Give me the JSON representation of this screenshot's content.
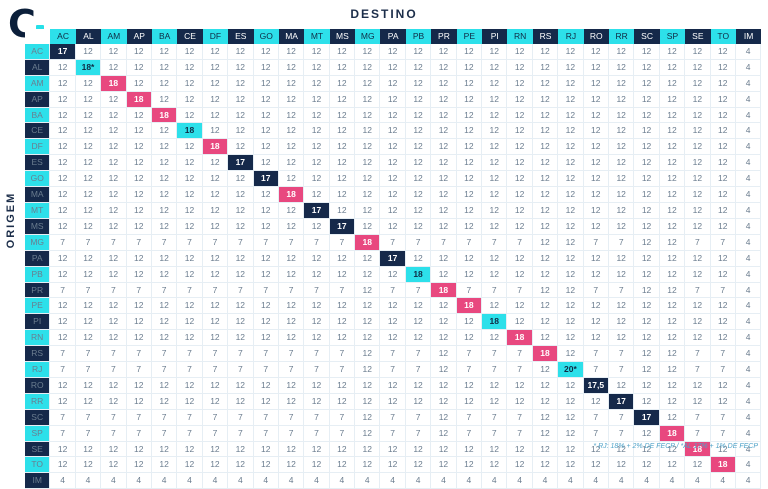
{
  "logo_text": "C",
  "column_title": "DESTINO",
  "row_title": "ORIGEM",
  "footnote": "* RJ: 18% + 2% DE FECP / *AL 17% + 1% DE FECP",
  "colors": {
    "navy": "#15294a",
    "cyan": "#2de0ea",
    "pink": "#e8487f"
  },
  "states": [
    "AC",
    "AL",
    "AM",
    "AP",
    "BA",
    "CE",
    "DF",
    "ES",
    "GO",
    "MA",
    "MT",
    "MS",
    "MG",
    "PA",
    "PB",
    "PR",
    "PE",
    "PI",
    "RN",
    "RS",
    "RJ",
    "RO",
    "RR",
    "SC",
    "SP",
    "SE",
    "TO",
    "IM"
  ],
  "header_color_sequence": [
    "cyan",
    "navy"
  ],
  "rows": [
    {
      "state": "AC",
      "values": [
        "17",
        "12",
        "12",
        "12",
        "12",
        "12",
        "12",
        "12",
        "12",
        "12",
        "12",
        "12",
        "12",
        "12",
        "12",
        "12",
        "12",
        "12",
        "12",
        "12",
        "12",
        "12",
        "12",
        "12",
        "12",
        "12",
        "12",
        "4"
      ]
    },
    {
      "state": "AL",
      "values": [
        "12",
        "18*",
        "12",
        "12",
        "12",
        "12",
        "12",
        "12",
        "12",
        "12",
        "12",
        "12",
        "12",
        "12",
        "12",
        "12",
        "12",
        "12",
        "12",
        "12",
        "12",
        "12",
        "12",
        "12",
        "12",
        "12",
        "12",
        "4"
      ]
    },
    {
      "state": "AM",
      "values": [
        "12",
        "12",
        "18",
        "12",
        "12",
        "12",
        "12",
        "12",
        "12",
        "12",
        "12",
        "12",
        "12",
        "12",
        "12",
        "12",
        "12",
        "12",
        "12",
        "12",
        "12",
        "12",
        "12",
        "12",
        "12",
        "12",
        "12",
        "4"
      ]
    },
    {
      "state": "AP",
      "values": [
        "12",
        "12",
        "12",
        "18",
        "12",
        "12",
        "12",
        "12",
        "12",
        "12",
        "12",
        "12",
        "12",
        "12",
        "12",
        "12",
        "12",
        "12",
        "12",
        "12",
        "12",
        "12",
        "12",
        "12",
        "12",
        "12",
        "12",
        "4"
      ]
    },
    {
      "state": "BA",
      "values": [
        "12",
        "12",
        "12",
        "12",
        "18",
        "12",
        "12",
        "12",
        "12",
        "12",
        "12",
        "12",
        "12",
        "12",
        "12",
        "12",
        "12",
        "12",
        "12",
        "12",
        "12",
        "12",
        "12",
        "12",
        "12",
        "12",
        "12",
        "4"
      ]
    },
    {
      "state": "CE",
      "values": [
        "12",
        "12",
        "12",
        "12",
        "12",
        "18",
        "12",
        "12",
        "12",
        "12",
        "12",
        "12",
        "12",
        "12",
        "12",
        "12",
        "12",
        "12",
        "12",
        "12",
        "12",
        "12",
        "12",
        "12",
        "12",
        "12",
        "12",
        "4"
      ]
    },
    {
      "state": "DF",
      "values": [
        "12",
        "12",
        "12",
        "12",
        "12",
        "12",
        "18",
        "12",
        "12",
        "12",
        "12",
        "12",
        "12",
        "12",
        "12",
        "12",
        "12",
        "12",
        "12",
        "12",
        "12",
        "12",
        "12",
        "12",
        "12",
        "12",
        "12",
        "4"
      ]
    },
    {
      "state": "ES",
      "values": [
        "12",
        "12",
        "12",
        "12",
        "12",
        "12",
        "12",
        "17",
        "12",
        "12",
        "12",
        "12",
        "12",
        "12",
        "12",
        "12",
        "12",
        "12",
        "12",
        "12",
        "12",
        "12",
        "12",
        "12",
        "12",
        "12",
        "12",
        "4"
      ]
    },
    {
      "state": "GO",
      "values": [
        "12",
        "12",
        "12",
        "12",
        "12",
        "12",
        "12",
        "12",
        "17",
        "12",
        "12",
        "12",
        "12",
        "12",
        "12",
        "12",
        "12",
        "12",
        "12",
        "12",
        "12",
        "12",
        "12",
        "12",
        "12",
        "12",
        "12",
        "4"
      ]
    },
    {
      "state": "MA",
      "values": [
        "12",
        "12",
        "12",
        "12",
        "12",
        "12",
        "12",
        "12",
        "12",
        "18",
        "12",
        "12",
        "12",
        "12",
        "12",
        "12",
        "12",
        "12",
        "12",
        "12",
        "12",
        "12",
        "12",
        "12",
        "12",
        "12",
        "12",
        "4"
      ]
    },
    {
      "state": "MT",
      "values": [
        "12",
        "12",
        "12",
        "12",
        "12",
        "12",
        "12",
        "12",
        "12",
        "12",
        "17",
        "12",
        "12",
        "12",
        "12",
        "12",
        "12",
        "12",
        "12",
        "12",
        "12",
        "12",
        "12",
        "12",
        "12",
        "12",
        "12",
        "4"
      ]
    },
    {
      "state": "MS",
      "values": [
        "12",
        "12",
        "12",
        "12",
        "12",
        "12",
        "12",
        "12",
        "12",
        "12",
        "12",
        "17",
        "12",
        "12",
        "12",
        "12",
        "12",
        "12",
        "12",
        "12",
        "12",
        "12",
        "12",
        "12",
        "12",
        "12",
        "12",
        "4"
      ]
    },
    {
      "state": "MG",
      "values": [
        "7",
        "7",
        "7",
        "7",
        "7",
        "7",
        "7",
        "7",
        "7",
        "7",
        "7",
        "7",
        "18",
        "7",
        "7",
        "7",
        "7",
        "7",
        "7",
        "12",
        "12",
        "7",
        "7",
        "12",
        "12",
        "7",
        "7",
        "4"
      ]
    },
    {
      "state": "PA",
      "values": [
        "12",
        "12",
        "12",
        "12",
        "12",
        "12",
        "12",
        "12",
        "12",
        "12",
        "12",
        "12",
        "12",
        "17",
        "12",
        "12",
        "12",
        "12",
        "12",
        "12",
        "12",
        "12",
        "12",
        "12",
        "12",
        "12",
        "12",
        "4"
      ]
    },
    {
      "state": "PB",
      "values": [
        "12",
        "12",
        "12",
        "12",
        "12",
        "12",
        "12",
        "12",
        "12",
        "12",
        "12",
        "12",
        "12",
        "12",
        "18",
        "12",
        "12",
        "12",
        "12",
        "12",
        "12",
        "12",
        "12",
        "12",
        "12",
        "12",
        "12",
        "4"
      ]
    },
    {
      "state": "PR",
      "values": [
        "7",
        "7",
        "7",
        "7",
        "7",
        "7",
        "7",
        "7",
        "7",
        "7",
        "7",
        "7",
        "12",
        "7",
        "7",
        "18",
        "7",
        "7",
        "7",
        "12",
        "12",
        "7",
        "7",
        "12",
        "12",
        "7",
        "7",
        "4"
      ]
    },
    {
      "state": "PE",
      "values": [
        "12",
        "12",
        "12",
        "12",
        "12",
        "12",
        "12",
        "12",
        "12",
        "12",
        "12",
        "12",
        "12",
        "12",
        "12",
        "12",
        "18",
        "12",
        "12",
        "12",
        "12",
        "12",
        "12",
        "12",
        "12",
        "12",
        "12",
        "4"
      ]
    },
    {
      "state": "PI",
      "values": [
        "12",
        "12",
        "12",
        "12",
        "12",
        "12",
        "12",
        "12",
        "12",
        "12",
        "12",
        "12",
        "12",
        "12",
        "12",
        "12",
        "12",
        "18",
        "12",
        "12",
        "12",
        "12",
        "12",
        "12",
        "12",
        "12",
        "12",
        "4"
      ]
    },
    {
      "state": "RN",
      "values": [
        "12",
        "12",
        "12",
        "12",
        "12",
        "12",
        "12",
        "12",
        "12",
        "12",
        "12",
        "12",
        "12",
        "12",
        "12",
        "12",
        "12",
        "12",
        "18",
        "12",
        "12",
        "12",
        "12",
        "12",
        "12",
        "12",
        "12",
        "4"
      ]
    },
    {
      "state": "RS",
      "values": [
        "7",
        "7",
        "7",
        "7",
        "7",
        "7",
        "7",
        "7",
        "7",
        "7",
        "7",
        "7",
        "12",
        "7",
        "7",
        "12",
        "7",
        "7",
        "7",
        "18",
        "12",
        "7",
        "7",
        "12",
        "12",
        "7",
        "7",
        "4"
      ]
    },
    {
      "state": "RJ",
      "values": [
        "7",
        "7",
        "7",
        "7",
        "7",
        "7",
        "7",
        "7",
        "7",
        "7",
        "7",
        "7",
        "12",
        "7",
        "7",
        "12",
        "7",
        "7",
        "7",
        "12",
        "20*",
        "7",
        "7",
        "12",
        "12",
        "7",
        "7",
        "4"
      ]
    },
    {
      "state": "RO",
      "values": [
        "12",
        "12",
        "12",
        "12",
        "12",
        "12",
        "12",
        "12",
        "12",
        "12",
        "12",
        "12",
        "12",
        "12",
        "12",
        "12",
        "12",
        "12",
        "12",
        "12",
        "12",
        "17,5",
        "12",
        "12",
        "12",
        "12",
        "12",
        "4"
      ]
    },
    {
      "state": "RR",
      "values": [
        "12",
        "12",
        "12",
        "12",
        "12",
        "12",
        "12",
        "12",
        "12",
        "12",
        "12",
        "12",
        "12",
        "12",
        "12",
        "12",
        "12",
        "12",
        "12",
        "12",
        "12",
        "12",
        "17",
        "12",
        "12",
        "12",
        "12",
        "4"
      ]
    },
    {
      "state": "SC",
      "values": [
        "7",
        "7",
        "7",
        "7",
        "7",
        "7",
        "7",
        "7",
        "7",
        "7",
        "7",
        "7",
        "12",
        "7",
        "7",
        "12",
        "7",
        "7",
        "7",
        "12",
        "12",
        "7",
        "7",
        "17",
        "12",
        "7",
        "7",
        "4"
      ]
    },
    {
      "state": "SP",
      "values": [
        "7",
        "7",
        "7",
        "7",
        "7",
        "7",
        "7",
        "7",
        "7",
        "7",
        "7",
        "7",
        "12",
        "7",
        "7",
        "12",
        "7",
        "7",
        "7",
        "12",
        "12",
        "7",
        "7",
        "12",
        "18",
        "7",
        "7",
        "4"
      ]
    },
    {
      "state": "SE",
      "values": [
        "12",
        "12",
        "12",
        "12",
        "12",
        "12",
        "12",
        "12",
        "12",
        "12",
        "12",
        "12",
        "12",
        "12",
        "12",
        "12",
        "12",
        "12",
        "12",
        "12",
        "12",
        "12",
        "12",
        "12",
        "12",
        "18",
        "12",
        "4"
      ]
    },
    {
      "state": "TO",
      "values": [
        "12",
        "12",
        "12",
        "12",
        "12",
        "12",
        "12",
        "12",
        "12",
        "12",
        "12",
        "12",
        "12",
        "12",
        "12",
        "12",
        "12",
        "12",
        "12",
        "12",
        "12",
        "12",
        "12",
        "12",
        "12",
        "12",
        "18",
        "4"
      ]
    },
    {
      "state": "IM",
      "values": [
        "4",
        "4",
        "4",
        "4",
        "4",
        "4",
        "4",
        "4",
        "4",
        "4",
        "4",
        "4",
        "4",
        "4",
        "4",
        "4",
        "4",
        "4",
        "4",
        "4",
        "4",
        "4",
        "4",
        "4",
        "4",
        "4",
        "4",
        "4"
      ]
    }
  ],
  "diagonal_colors": [
    "navy",
    "cyan",
    "pink",
    "pink",
    "pink",
    "cyan",
    "pink",
    "navy",
    "navy",
    "pink",
    "navy",
    "navy",
    "pink",
    "navy",
    "cyan",
    "pink",
    "pink",
    "cyan",
    "pink",
    "pink",
    "cyan",
    "navy",
    "navy",
    "navy",
    "pink",
    "pink",
    "pink"
  ]
}
